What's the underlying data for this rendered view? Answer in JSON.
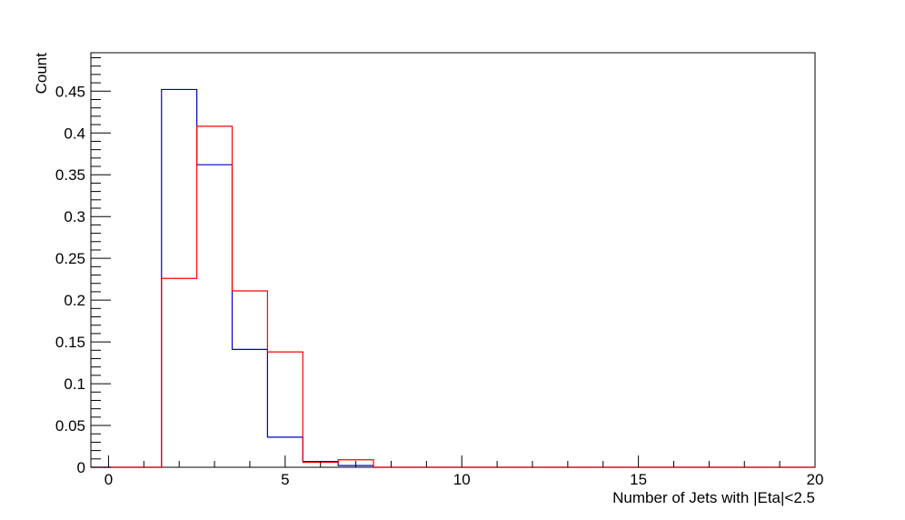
{
  "chart_data": {
    "type": "histogram",
    "xlabel": "Number of Jets with |Eta|<2.5",
    "ylabel": "Count",
    "xlim": [
      -0.5,
      20
    ],
    "ylim": [
      0,
      0.496
    ],
    "bin_edges": [
      -0.5,
      0.5,
      1.5,
      2.5,
      3.5,
      4.5,
      5.5,
      6.5,
      7.5,
      8.5,
      9.5,
      10.5,
      11.5,
      12.5,
      13.5,
      14.5,
      15.5,
      16.5,
      17.5,
      18.5,
      19.5,
      20
    ],
    "x_ticks": [
      "0",
      "5",
      "10",
      "15",
      "20"
    ],
    "y_ticks": [
      "0",
      "0.05",
      "0.1",
      "0.15",
      "0.2",
      "0.25",
      "0.3",
      "0.35",
      "0.4",
      "0.45"
    ],
    "grid": false,
    "series": [
      {
        "color": "#0000cc",
        "values": [
          0,
          0,
          0.452,
          0.362,
          0.141,
          0.036,
          0.007,
          0.002,
          0,
          0,
          0,
          0,
          0,
          0,
          0,
          0,
          0,
          0,
          0,
          0,
          0
        ]
      },
      {
        "color": "#ff0000",
        "values": [
          0,
          0,
          0.226,
          0.408,
          0.211,
          0.138,
          0.006,
          0.009,
          0,
          0,
          0,
          0,
          0,
          0,
          0,
          0,
          0,
          0,
          0,
          0,
          0
        ]
      }
    ]
  }
}
